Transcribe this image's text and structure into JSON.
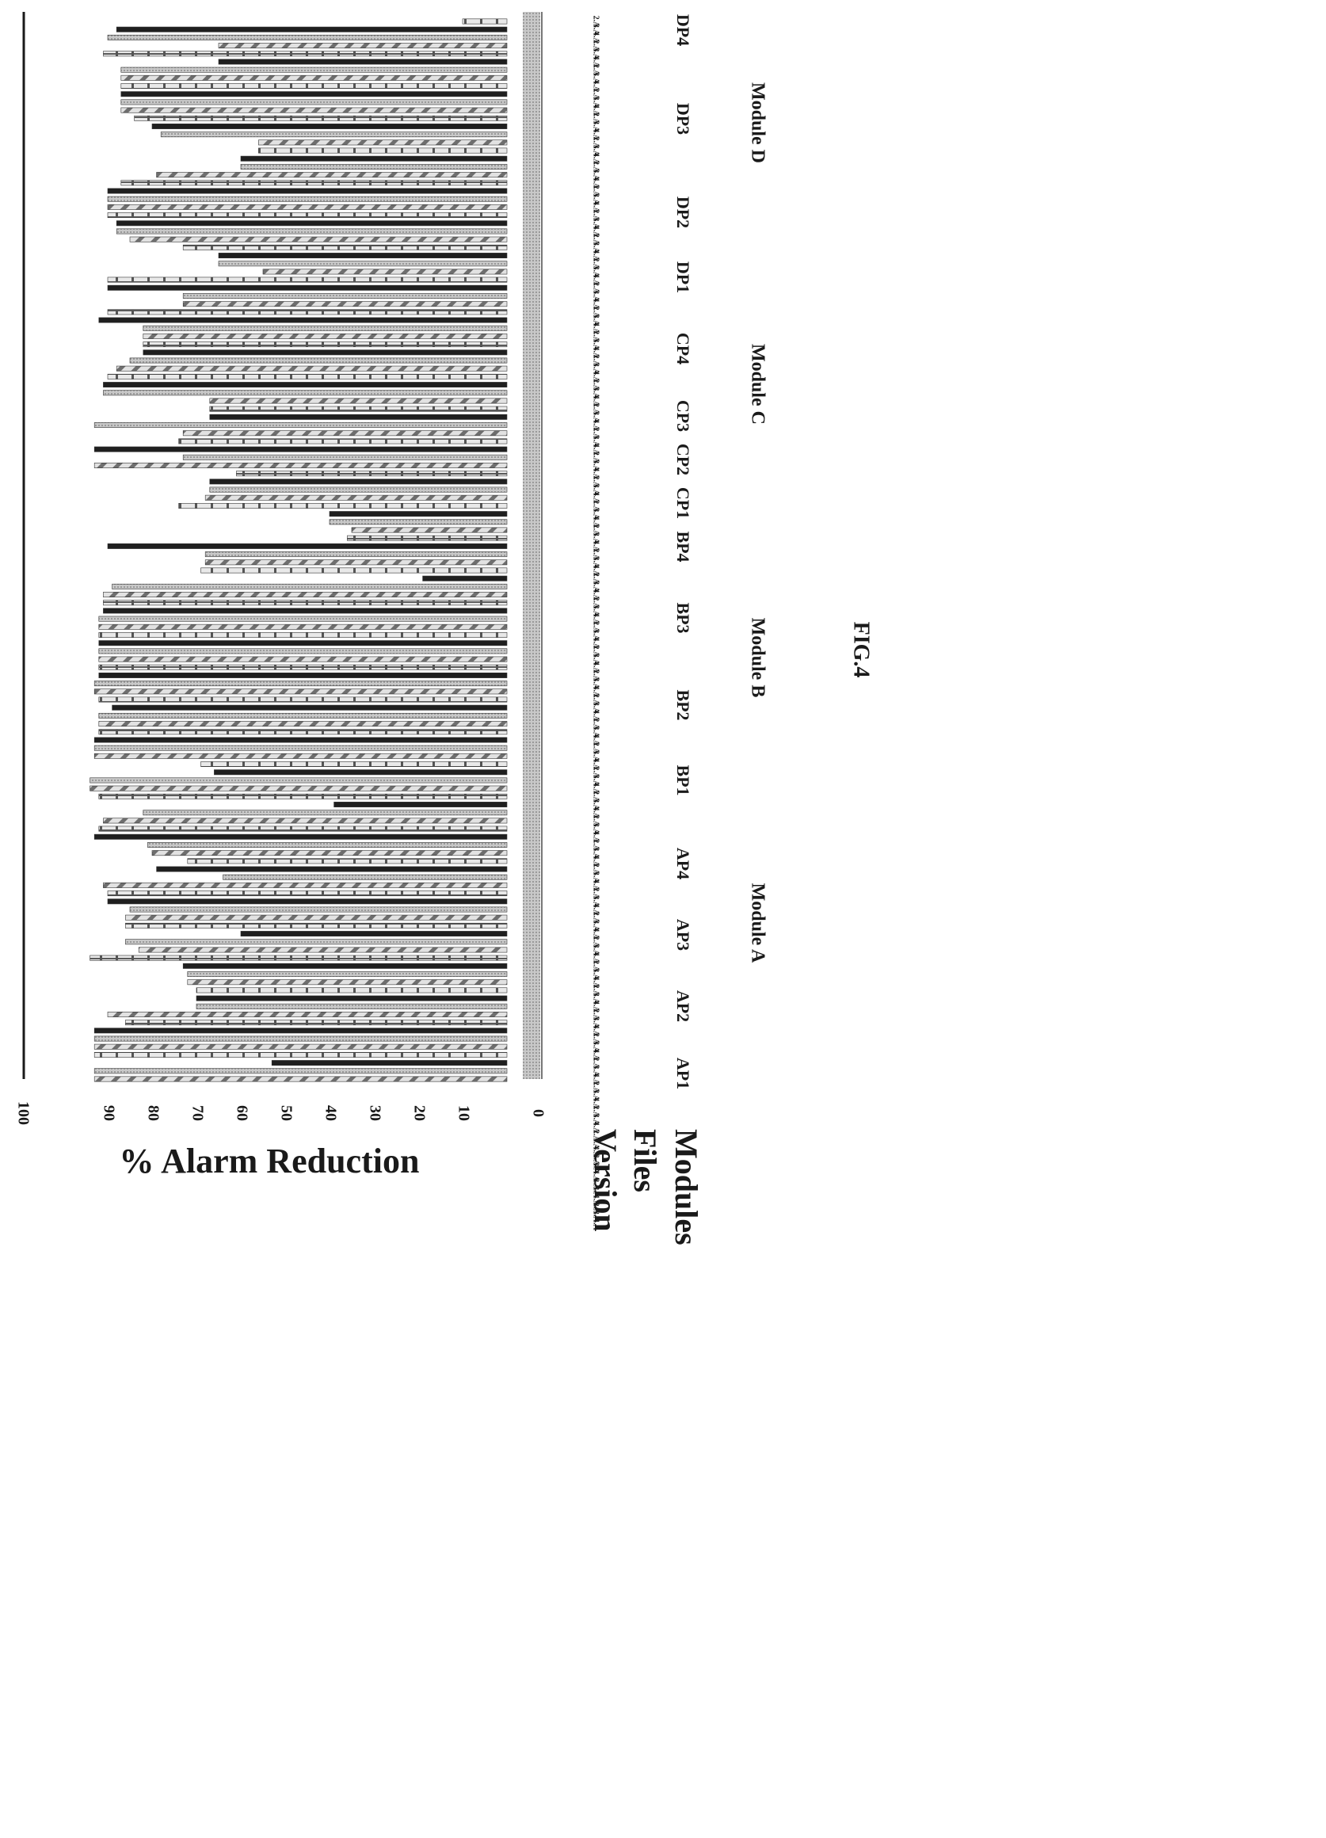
{
  "chart_data": {
    "type": "bar",
    "orientation": "horizontal-rotated",
    "ylabel": "% Alarm Reduction",
    "ylim": [
      0,
      100
    ],
    "y_ticks": [
      "0",
      "10",
      "20",
      "30",
      "40",
      "50",
      "60",
      "70",
      "80",
      "90",
      "100"
    ],
    "row_labels": [
      "Version",
      "Files",
      "Modules"
    ],
    "figure_label": "FIG.4",
    "modules": [
      {
        "name": "Module A",
        "files": [
          "AP1",
          "AP2",
          "AP3",
          "AP4"
        ]
      },
      {
        "name": "Module B",
        "files": [
          "BP1",
          "BP2",
          "BP3",
          "BP4"
        ]
      },
      {
        "name": "Module C",
        "files": [
          "CP1",
          "CP2",
          "CP3",
          "CP4"
        ]
      },
      {
        "name": "Module D",
        "files": [
          "DP1",
          "DP2",
          "DP3",
          "DP4"
        ]
      }
    ],
    "version_labels": [
      "2.A",
      "3.A",
      "4.A",
      "2.A",
      "3.A",
      "4.A",
      "2.A",
      "3.A",
      "4.A",
      "2.A",
      "3.A",
      "4.A",
      "2.A",
      "3.A",
      "4.A",
      "2.A",
      "3.A",
      "4.A",
      "2.A",
      "3.A",
      "4.A",
      "2.A",
      "3.A",
      "4.A",
      "2.A",
      "3.A",
      "4.A",
      "2.A",
      "3.A",
      "4.A",
      "2.A",
      "3.A",
      "4.A",
      "2.A",
      "3.A",
      "4.A",
      "2.A",
      "3.A",
      "4.A",
      "2.A",
      "3.A",
      "4.A",
      "2.A",
      "3.A",
      "4.A",
      "2.A",
      "3.A",
      "4.A",
      "2.A",
      "3.A",
      "4.A",
      "2.A",
      "3.A",
      "4.A",
      "2.A",
      "3.A",
      "4.A",
      "2.A",
      "3.A",
      "4.A",
      "2.A",
      "3.A",
      "4.A",
      "2.A",
      "3.A",
      "4.A",
      "2.A",
      "3.A",
      "4.A",
      "2.A",
      "3.A",
      "4.A",
      "2.A",
      "3.A",
      "4.A",
      "2.A",
      "3.A",
      "4.A",
      "2.A",
      "3.A",
      "4.A",
      "2.A",
      "3.A",
      "4.A",
      "2.A",
      "3.A",
      "4.A",
      "2.A",
      "3.A",
      "4.A",
      "2.A",
      "3.A",
      "4.A",
      "2.A",
      "3.A",
      "4.A",
      "2.A",
      "3.A",
      "4.A",
      "2.A",
      "3.A",
      "4.A",
      "2.A",
      "3.A",
      "4.A",
      "2.A",
      "3.A",
      "4.A",
      "2.A",
      "3.A",
      "4.A",
      "2.A",
      "3.A",
      "4.A",
      "2.A",
      "3.A",
      "4.A",
      "2.A",
      "3.A",
      "4.A",
      "2.A",
      "3.A",
      "4.A",
      "2.A",
      "3.A",
      "4.A",
      "2.A",
      "3.A",
      "4.A",
      "2.A",
      "3.A",
      "4.A",
      "2.A",
      "3.A",
      "4.A",
      "2.A",
      "3.A",
      "4.A",
      "2.A",
      "3.A",
      "4.A",
      "2.A",
      "3.A",
      "4.A",
      "2.A",
      "3.A",
      "4.A",
      "2.A",
      "3.A",
      "4.A"
    ],
    "values": [
      10,
      88,
      90,
      65,
      91,
      65,
      87,
      87,
      87,
      87,
      87,
      87,
      84,
      80,
      78,
      56,
      56,
      60,
      60,
      79,
      87,
      90,
      90,
      90,
      90,
      88,
      88,
      85,
      73,
      65,
      65,
      55,
      90,
      90,
      73,
      73,
      90,
      92,
      82,
      82,
      82,
      82,
      85,
      88,
      90,
      91,
      91,
      67,
      67,
      67,
      93,
      73,
      74,
      93,
      73,
      93,
      61,
      67,
      67,
      68,
      74,
      40,
      40,
      35,
      36,
      90,
      68,
      68,
      69,
      19,
      89,
      91,
      91,
      91,
      92,
      92,
      92,
      92,
      92,
      92,
      92,
      92,
      93,
      93,
      92,
      89,
      92,
      92,
      92,
      93,
      93,
      93,
      69,
      66,
      94,
      94,
      92,
      39,
      82,
      91,
      92,
      93,
      81,
      80,
      72,
      79,
      64,
      91,
      90,
      90,
      85,
      86,
      86,
      60,
      86,
      83,
      94,
      73,
      72,
      72,
      70,
      70,
      70,
      90,
      86,
      93,
      93,
      93,
      93,
      53,
      93,
      93
    ]
  }
}
